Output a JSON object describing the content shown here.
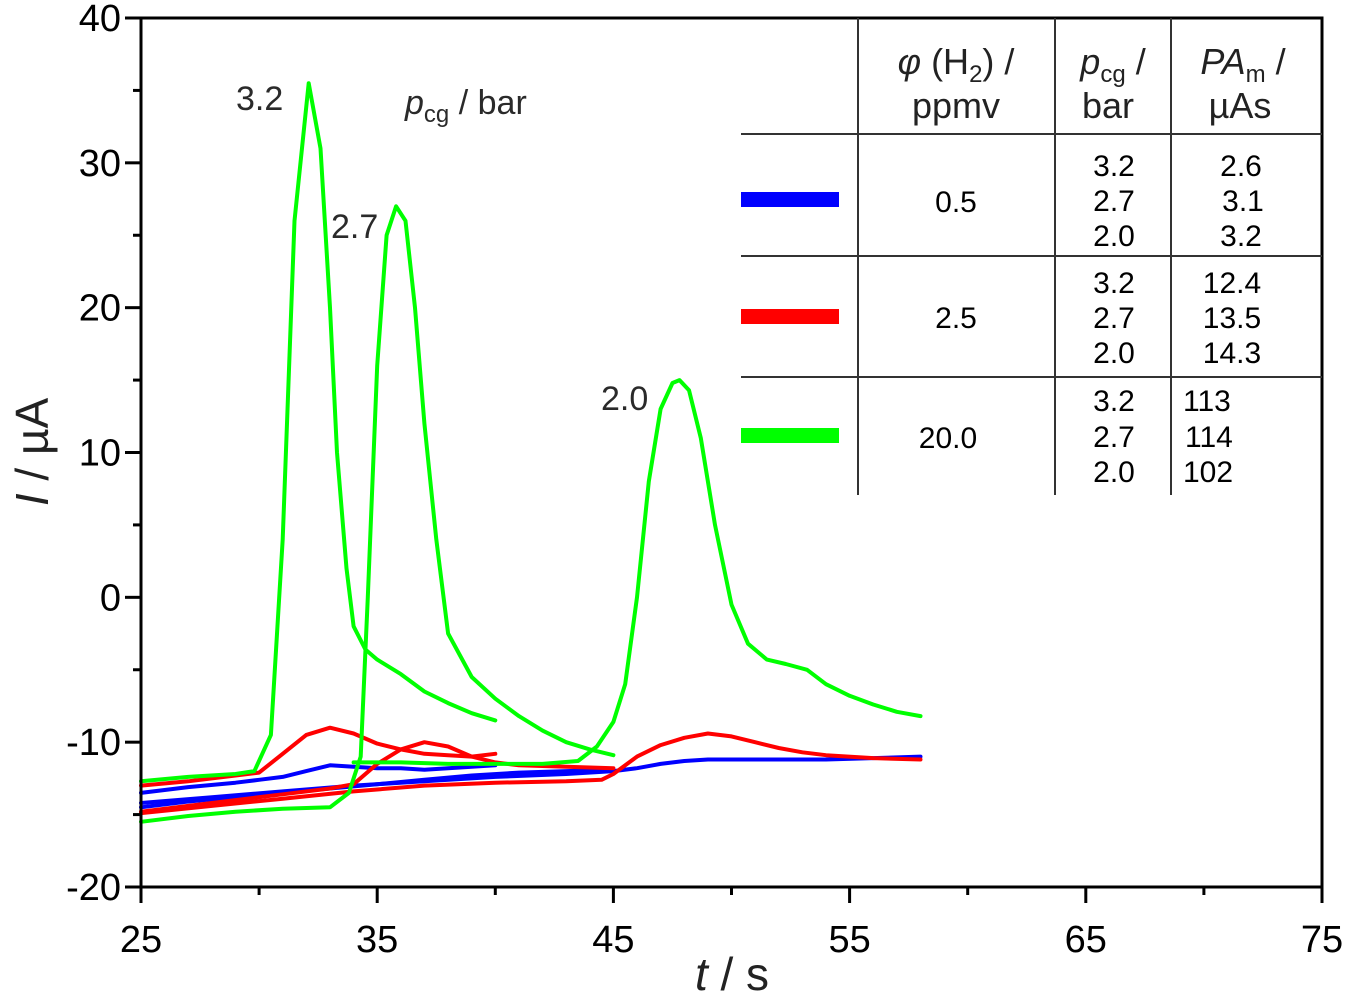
{
  "chart_data": {
    "type": "line",
    "title": "",
    "xlabel": {
      "var": "t",
      "unit": " / s"
    },
    "ylabel": {
      "var": "I",
      "unit": " / µA"
    },
    "xlim": [
      25,
      75
    ],
    "ylim": [
      -20,
      40
    ],
    "xticks": [
      25,
      35,
      45,
      55,
      65,
      75
    ],
    "xtick_labels": [
      "25",
      "35",
      "45",
      "55",
      "65",
      "75"
    ],
    "xminor": [
      30,
      40,
      50,
      60,
      70
    ],
    "yticks": [
      -20,
      -10,
      0,
      10,
      20,
      30,
      40
    ],
    "ytick_labels": [
      "-20",
      "-10",
      "0",
      "10",
      "20",
      "30",
      "40"
    ],
    "yminor": [
      -15,
      -5,
      5,
      15,
      25,
      35
    ],
    "grid": false,
    "annotation_header": {
      "var": "p",
      "sub": "cg",
      "unit": " / bar"
    },
    "peak_labels": [
      {
        "text": "3.2",
        "t": 32.1,
        "I": 35.5
      },
      {
        "text": "2.7",
        "t": 35.8,
        "I": 27.0
      },
      {
        "text": "2.0",
        "t": 47.8,
        "I": 15.0
      }
    ],
    "series": [
      {
        "name": "0.5 ppmv, 3.2 bar",
        "color": "#0000ff",
        "x": [
          25,
          27,
          29,
          30,
          31,
          32,
          33,
          34,
          35,
          36,
          37,
          38,
          39,
          40
        ],
        "y": [
          -13.5,
          -13.1,
          -12.8,
          -12.6,
          -12.4,
          -12.0,
          -11.6,
          -11.7,
          -11.8,
          -11.8,
          -11.9,
          -11.8,
          -11.7,
          -11.6
        ]
      },
      {
        "name": "0.5 ppmv, 2.7 bar",
        "color": "#0000ff",
        "x": [
          25,
          27,
          29,
          31,
          33,
          35,
          37,
          39,
          41,
          43,
          45
        ],
        "y": [
          -14.5,
          -14.1,
          -13.8,
          -13.5,
          -13.2,
          -12.9,
          -12.6,
          -12.3,
          -12.1,
          -12.0,
          -11.9
        ]
      },
      {
        "name": "0.5 ppmv, 2.0 bar",
        "color": "#0000ff",
        "x": [
          25,
          28,
          31,
          34,
          37,
          40,
          43,
          45,
          46,
          47,
          48,
          49,
          50,
          52,
          54,
          56,
          58
        ],
        "y": [
          -14.2,
          -13.8,
          -13.4,
          -13.0,
          -12.7,
          -12.4,
          -12.2,
          -12.0,
          -11.8,
          -11.5,
          -11.3,
          -11.2,
          -11.2,
          -11.2,
          -11.2,
          -11.1,
          -11.0
        ]
      },
      {
        "name": "2.5 ppmv, 3.2 bar",
        "color": "#ff0000",
        "x": [
          25,
          27,
          29,
          30,
          31,
          32,
          33,
          34,
          35,
          36,
          37,
          38,
          39,
          40
        ],
        "y": [
          -13.0,
          -12.7,
          -12.3,
          -12.1,
          -10.8,
          -9.5,
          -9.0,
          -9.4,
          -10.1,
          -10.5,
          -10.8,
          -10.9,
          -11.0,
          -10.8
        ]
      },
      {
        "name": "2.5 ppmv, 2.7 bar",
        "color": "#ff0000",
        "x": [
          25,
          27,
          29,
          31,
          33,
          34,
          35,
          36,
          37,
          38,
          39,
          40,
          41,
          43,
          45
        ],
        "y": [
          -14.8,
          -14.4,
          -14.0,
          -13.6,
          -13.2,
          -12.9,
          -11.5,
          -10.5,
          -10.0,
          -10.3,
          -11.0,
          -11.4,
          -11.6,
          -11.7,
          -11.8
        ]
      },
      {
        "name": "2.5 ppmv, 2.0 bar",
        "color": "#ff0000",
        "x": [
          25,
          28,
          31,
          34,
          37,
          40,
          43,
          44.5,
          45,
          46,
          47,
          48,
          49,
          50,
          51,
          52,
          53,
          54,
          56,
          58
        ],
        "y": [
          -14.9,
          -14.4,
          -13.9,
          -13.4,
          -13.0,
          -12.8,
          -12.7,
          -12.6,
          -12.2,
          -11.0,
          -10.2,
          -9.7,
          -9.4,
          -9.6,
          -10.0,
          -10.4,
          -10.7,
          -10.9,
          -11.1,
          -11.2
        ]
      },
      {
        "name": "20.0 ppmv, 3.2 bar",
        "color": "#00ff00",
        "x": [
          25,
          27,
          29,
          29.8,
          30.5,
          31.0,
          31.5,
          32.1,
          32.6,
          33.0,
          33.3,
          33.7,
          34.0,
          34.5,
          35,
          36,
          37,
          38,
          39,
          40
        ],
        "y": [
          -12.7,
          -12.4,
          -12.2,
          -12.0,
          -9.5,
          4.0,
          26.0,
          35.5,
          31.0,
          20.0,
          10.0,
          2.0,
          -2.0,
          -3.6,
          -4.3,
          -5.3,
          -6.5,
          -7.3,
          -8.0,
          -8.5
        ]
      },
      {
        "name": "20.0 ppmv, 2.7 bar",
        "color": "#00ff00",
        "x": [
          25,
          27,
          29,
          31,
          33,
          33.8,
          34.3,
          34.6,
          35.0,
          35.4,
          35.8,
          36.2,
          36.6,
          37.0,
          37.5,
          38,
          39,
          40,
          41,
          42,
          43,
          44,
          45
        ],
        "y": [
          -15.5,
          -15.1,
          -14.8,
          -14.6,
          -14.5,
          -13.5,
          -11.0,
          0.0,
          16.0,
          25.0,
          27.0,
          26.0,
          20.0,
          12.0,
          4.0,
          -2.5,
          -5.5,
          -7.0,
          -8.2,
          -9.2,
          -10.0,
          -10.5,
          -10.9
        ]
      },
      {
        "name": "20.0 ppmv, 2.0 bar",
        "color": "#00ff00",
        "x": [
          34,
          36,
          38,
          40,
          42,
          43.5,
          44.3,
          45,
          45.5,
          46.0,
          46.5,
          47.0,
          47.5,
          47.8,
          48.2,
          48.7,
          49.3,
          50,
          50.7,
          51.5,
          52.3,
          53.2,
          54,
          55,
          56,
          57,
          58
        ],
        "y": [
          -11.4,
          -11.4,
          -11.5,
          -11.5,
          -11.5,
          -11.3,
          -10.3,
          -8.6,
          -6.0,
          0.0,
          8.0,
          13.0,
          14.8,
          15.0,
          14.3,
          11.0,
          5.0,
          -0.5,
          -3.2,
          -4.3,
          -4.6,
          -5.0,
          -6.0,
          -6.8,
          -7.4,
          -7.9,
          -8.2
        ]
      }
    ]
  },
  "legend_table": {
    "headers": {
      "col1": {
        "var": "φ",
        "text": " (H",
        "sub": "2",
        "tail": ") /",
        "line2": "ppmv"
      },
      "col2": {
        "var": "p",
        "sub": "cg",
        "tail": " /",
        "line2": "bar"
      },
      "col3": {
        "var": "PA",
        "sub": "m",
        "tail": " /",
        "line2": "µAs"
      }
    },
    "rows": [
      {
        "color": "#0000ff",
        "phi": "0.5",
        "pcg": [
          "3.2",
          "2.7",
          "2.0"
        ],
        "pam": [
          "2.6",
          "3.1",
          "3.2"
        ]
      },
      {
        "color": "#ff0000",
        "phi": "2.5",
        "pcg": [
          "3.2",
          "2.7",
          "2.0"
        ],
        "pam": [
          "12.4",
          "13.5",
          "14.3"
        ]
      },
      {
        "color": "#00ff00",
        "phi": "20.0",
        "pcg": [
          "3.2",
          "2.7",
          "2.0"
        ],
        "pam": [
          "113",
          "114",
          "102"
        ]
      }
    ]
  }
}
